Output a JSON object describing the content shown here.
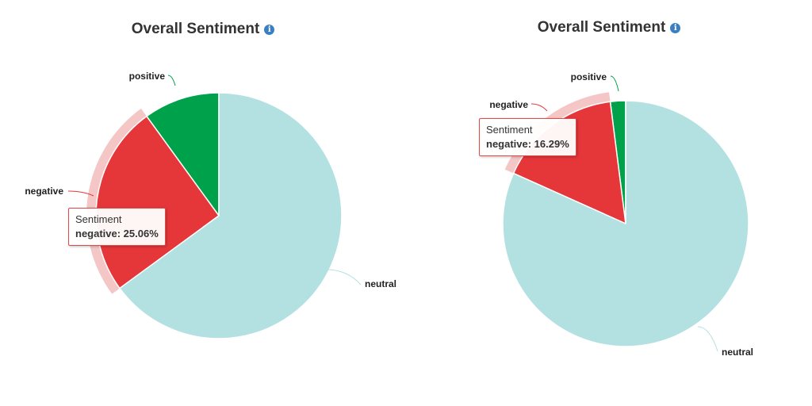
{
  "chart_data": [
    {
      "type": "pie",
      "title": "Overall Sentiment",
      "categories": [
        "positive",
        "negative",
        "neutral"
      ],
      "values": [
        10.0,
        25.06,
        64.94
      ],
      "colors": [
        "#00a14b",
        "#e5373a",
        "#b3e1e1"
      ],
      "highlighted": "negative",
      "tooltip": {
        "series": "Sentiment",
        "text": "negative: 25.06%"
      }
    },
    {
      "type": "pie",
      "title": "Overall Sentiment",
      "categories": [
        "positive",
        "negative",
        "neutral"
      ],
      "values": [
        2.0,
        16.29,
        81.71
      ],
      "colors": [
        "#00a14b",
        "#e5373a",
        "#b3e1e1"
      ],
      "highlighted": "negative",
      "tooltip": {
        "series": "Sentiment",
        "text": "negative: 16.29%"
      }
    }
  ],
  "halo_color": "#f4c6c6",
  "info_icon": "info-icon"
}
